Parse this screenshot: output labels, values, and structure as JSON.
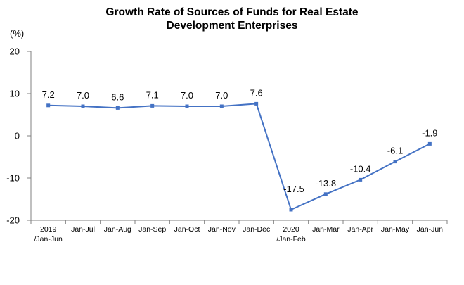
{
  "chart_data": {
    "type": "line",
    "title_lines": [
      "Growth Rate of Sources of Funds for Real Estate",
      "Development Enterprises"
    ],
    "unit_label": "(%)",
    "xlabel": "",
    "ylabel": "",
    "ylim": [
      -20,
      20
    ],
    "yticks": [
      20,
      10,
      0,
      -10,
      -20
    ],
    "grid": false,
    "legend": "none",
    "categories": [
      [
        "2019",
        "/Jan-Jun"
      ],
      [
        "Jan-Jul"
      ],
      [
        "Jan-Aug"
      ],
      [
        "Jan-Sep"
      ],
      [
        "Jan-Oct"
      ],
      [
        "Jan-Nov"
      ],
      [
        "Jan-Dec"
      ],
      [
        "2020",
        "/Jan-Feb"
      ],
      [
        "Jan-Mar"
      ],
      [
        "Jan-Apr"
      ],
      [
        "Jan-May"
      ],
      [
        "Jan-Jun"
      ]
    ],
    "values": [
      7.2,
      7.0,
      6.6,
      7.1,
      7.0,
      7.0,
      7.6,
      -17.5,
      -13.8,
      -10.4,
      -6.1,
      -1.9
    ],
    "value_labels": [
      "7.2",
      "7.0",
      "6.6",
      "7.1",
      "7.0",
      "7.0",
      "7.6",
      "-17.5",
      "-13.8",
      "-10.4",
      "-6.1",
      "-1.9"
    ],
    "line_color": "#4472C4",
    "axis_color": "#808080"
  }
}
